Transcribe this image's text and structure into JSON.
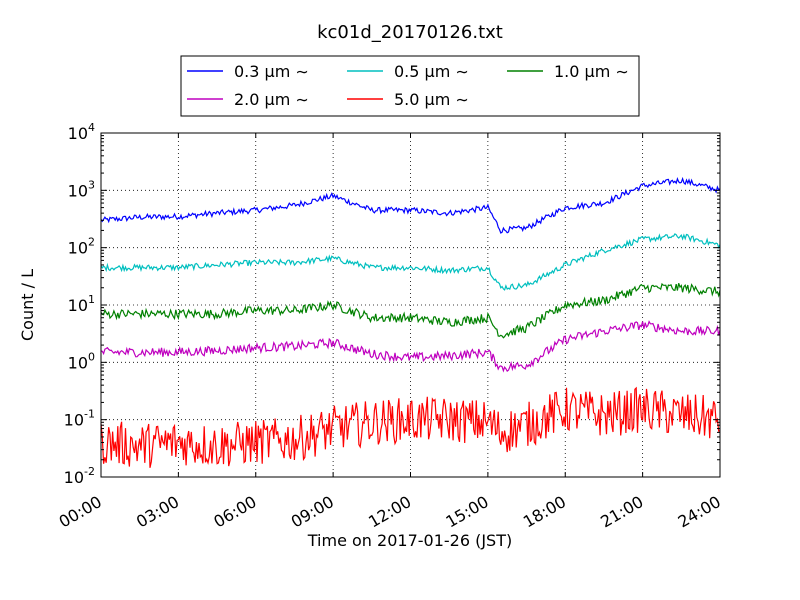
{
  "chart_data": {
    "type": "line",
    "title": "kc01d_20170126.txt",
    "xlabel": "Time on 2017-01-26 (JST)",
    "ylabel": "Count / L",
    "yscale": "log",
    "ylim": [
      0.01,
      10000
    ],
    "xlim": [
      "00:00",
      "24:00"
    ],
    "x_ticks": [
      "00:00",
      "03:00",
      "06:00",
      "09:00",
      "12:00",
      "15:00",
      "18:00",
      "21:00",
      "24:00"
    ],
    "y_ticks": [
      {
        "base": "10",
        "exp": "-2"
      },
      {
        "base": "10",
        "exp": "-1"
      },
      {
        "base": "10",
        "exp": "0"
      },
      {
        "base": "10",
        "exp": "1"
      },
      {
        "base": "10",
        "exp": "2"
      },
      {
        "base": "10",
        "exp": "3"
      },
      {
        "base": "10",
        "exp": "4"
      }
    ],
    "grid": true,
    "legend_placement": "top-center",
    "x_hours": [
      0,
      1.5,
      3,
      4.5,
      6,
      7.5,
      9,
      10.5,
      12,
      13.5,
      15,
      15.5,
      16.5,
      18,
      19.5,
      21,
      22.5,
      24
    ],
    "series": [
      {
        "name": "0.3 μm ∼",
        "color": "#0000ff",
        "noise": 0.05,
        "values": [
          300,
          340,
          350,
          400,
          450,
          550,
          800,
          450,
          450,
          400,
          500,
          200,
          220,
          500,
          600,
          1200,
          1500,
          1000
        ]
      },
      {
        "name": "0.5 μm ∼",
        "color": "#00bfbf",
        "noise": 0.05,
        "values": [
          45,
          45,
          45,
          50,
          55,
          55,
          65,
          45,
          45,
          40,
          45,
          20,
          22,
          50,
          90,
          140,
          160,
          110
        ]
      },
      {
        "name": "1.0 μm ∼",
        "color": "#008000",
        "noise": 0.08,
        "values": [
          7,
          7,
          7,
          7,
          8,
          8,
          10,
          6,
          6,
          5,
          6,
          3,
          4,
          10,
          12,
          20,
          20,
          17
        ]
      },
      {
        "name": "2.0 μm ∼",
        "color": "#bf00bf",
        "noise": 0.08,
        "values": [
          1.5,
          1.5,
          1.5,
          1.6,
          1.8,
          1.9,
          2.2,
          1.4,
          1.2,
          1.3,
          1.5,
          0.8,
          0.9,
          2.5,
          3.5,
          4.5,
          3.5,
          3.5
        ]
      },
      {
        "name": "5.0 μm ∼",
        "color": "#ff0000",
        "noise": 0.4,
        "values": [
          0.04,
          0.035,
          0.04,
          0.035,
          0.04,
          0.045,
          0.07,
          0.09,
          0.1,
          0.1,
          0.09,
          0.06,
          0.08,
          0.15,
          0.12,
          0.15,
          0.12,
          0.1
        ]
      }
    ]
  }
}
